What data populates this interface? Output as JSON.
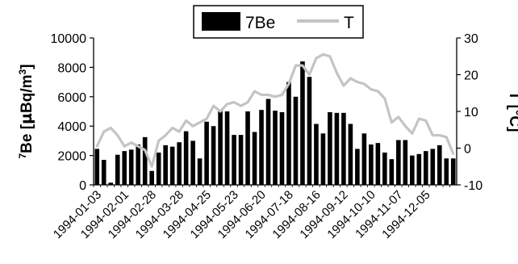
{
  "chart_data": {
    "type": "bar",
    "title": "",
    "legend": {
      "placement": "top-center",
      "entries": [
        {
          "label": "7Be",
          "kind": "bar",
          "color": "#000000"
        },
        {
          "label": "T",
          "kind": "line",
          "color": "#c4c4c4"
        }
      ]
    },
    "xlabel": "",
    "ylabel_left": "7Be [µBq/m3]",
    "ylabel_left_parts": {
      "sup_pre": "7",
      "main": "Be [",
      "mu": "µ",
      "unit": "Bq/m",
      "sup_post": "3",
      "close": "]"
    },
    "ylabel_right": "T [°C]",
    "ylim_left": [
      0,
      10000
    ],
    "yticks_left": [
      "0",
      "2000",
      "4000",
      "6000",
      "8000",
      "10000"
    ],
    "ylim_right": [
      -10,
      30
    ],
    "yticks_right": [
      "-10",
      "0",
      "10",
      "20",
      "30"
    ],
    "grid": false,
    "x_tick_labels": [
      "1994-01-03",
      "1994-02-01",
      "1994-02-28",
      "1994-03-28",
      "1994-04-25",
      "1994-05-23",
      "1994-06-20",
      "1994-07-18",
      "1994-08-16",
      "1994-09-12",
      "1994-10-10",
      "1994-11-07",
      "1994-12-05"
    ],
    "series": [
      {
        "name": "7Be",
        "type": "bar",
        "color": "#000000",
        "values": [
          2450,
          1700,
          150,
          2050,
          2300,
          2400,
          2750,
          3250,
          950,
          2200,
          2700,
          2600,
          2900,
          3650,
          3000,
          1800,
          4300,
          4000,
          5100,
          5000,
          3400,
          3400,
          5000,
          3600,
          5100,
          5850,
          5050,
          4950,
          7000,
          6000,
          8400,
          7350,
          4150,
          3500,
          4950,
          4900,
          4900,
          4150,
          2450,
          3500,
          2750,
          2850,
          2200,
          1750,
          3050,
          3050,
          2000,
          2100,
          2300,
          2450,
          2700,
          1800,
          1800
        ]
      },
      {
        "name": "T",
        "type": "line",
        "color": "#c4c4c4",
        "values": [
          0.5,
          4.5,
          5.5,
          3.5,
          0.5,
          1.5,
          0.5,
          -0.5,
          -5,
          2,
          3.5,
          5.5,
          4.5,
          7.5,
          6,
          7,
          8,
          11.5,
          10,
          12,
          12.5,
          11.5,
          12.5,
          15.5,
          14.5,
          14.5,
          14,
          14.5,
          17.5,
          22.5,
          22.5,
          20,
          24.5,
          25.5,
          25,
          20.5,
          17,
          19,
          18,
          17.5,
          16,
          15.5,
          13.5,
          7,
          8.5,
          6,
          4,
          8,
          7.5,
          3.5,
          3.5,
          3,
          -1.5
        ]
      }
    ]
  }
}
